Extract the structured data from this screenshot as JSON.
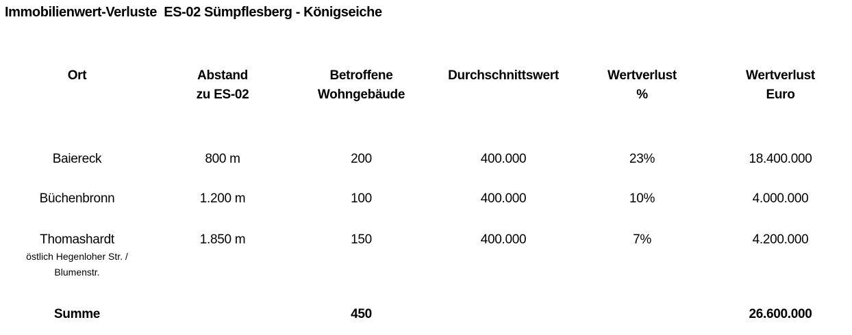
{
  "title": "Immobilienwert-Verluste  ES-02 Sümpflesberg - Königseiche",
  "colors": {
    "text": "#000000",
    "background": "#ffffff"
  },
  "table": {
    "headers": [
      {
        "line1": "Ort",
        "line2": ""
      },
      {
        "line1": "Abstand",
        "line2": "zu ES-02"
      },
      {
        "line1": "Betroffene",
        "line2": "Wohngebäude"
      },
      {
        "line1": "Durchschnittswert",
        "line2": ""
      },
      {
        "line1": "Wertverlust",
        "line2": "%"
      },
      {
        "line1": "Wertverlust",
        "line2": "Euro"
      }
    ],
    "rows": [
      {
        "ort": "Baiereck",
        "sub1": "",
        "sub2": "",
        "abstand": "800 m",
        "gebaeude": "200",
        "durchschnittswert": "400.000",
        "wertverlust_pct": "23%",
        "wertverlust_euro": "18.400.000"
      },
      {
        "ort": "Büchenbronn",
        "sub1": "",
        "sub2": "",
        "abstand": "1.200 m",
        "gebaeude": "100",
        "durchschnittswert": "400.000",
        "wertverlust_pct": "10%",
        "wertverlust_euro": "4.000.000"
      },
      {
        "ort": "Thomashardt",
        "sub1": "östlich Hegenloher Str. /",
        "sub2": "Blumenstr.",
        "abstand": "1.850 m",
        "gebaeude": "150",
        "durchschnittswert": "400.000",
        "wertverlust_pct": "7%",
        "wertverlust_euro": "4.200.000"
      }
    ],
    "sum_row": {
      "label": "Summe",
      "gebaeude": "450",
      "wertverlust_euro": "26.600.000"
    }
  }
}
